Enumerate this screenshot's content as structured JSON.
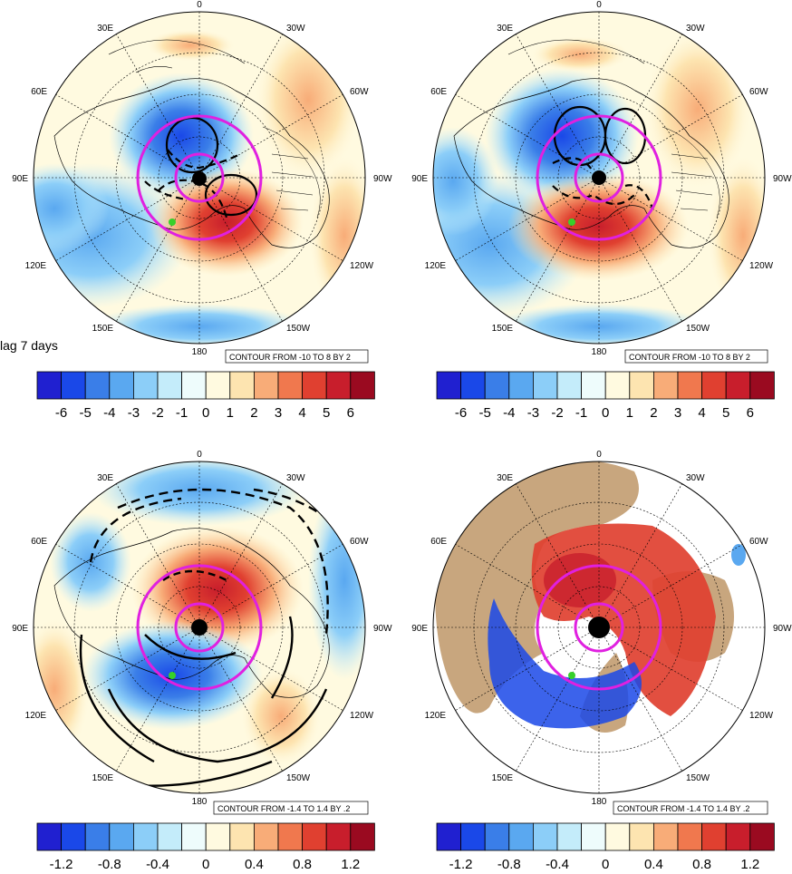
{
  "figure": {
    "lag_label": "lag 7 days"
  },
  "longitude_labels": {
    "top": "0",
    "n30e": "30E",
    "n30w": "30W",
    "e60": "60E",
    "w60": "60W",
    "e90": "90E",
    "w90": "90W",
    "e120": "120E",
    "w120": "120W",
    "e150": "150E",
    "w150": "150W",
    "bottom": "180"
  },
  "panels": [
    {
      "id": "top-left",
      "contour_info": "CONTOUR FROM -10 TO 8 BY 2",
      "land_fill": false
    },
    {
      "id": "top-right",
      "contour_info": "CONTOUR FROM -10 TO 8 BY 2",
      "land_fill": false
    },
    {
      "id": "bottom-left",
      "contour_info": "CONTOUR FROM -1.4 TO 1.4 BY .2",
      "land_fill": false
    },
    {
      "id": "bottom-right",
      "contour_info": "CONTOUR FROM -1.4 TO 1.4 BY .2",
      "land_fill": true
    }
  ],
  "colorbars": {
    "colors": [
      "#2020d0",
      "#1a48e8",
      "#3a7ee8",
      "#5aa8f0",
      "#8ccef8",
      "#c4ecfa",
      "#eefcfc",
      "#fffae0",
      "#fde4b0",
      "#f8ac78",
      "#f0784e",
      "#e04030",
      "#c81e2c",
      "#9a0a20"
    ],
    "top_ticks": [
      "-6",
      "-5",
      "-4",
      "-3",
      "-2",
      "-1",
      "0",
      "1",
      "2",
      "3",
      "4",
      "5",
      "6"
    ],
    "bottom_ticks": [
      "-1.2",
      "-0.8",
      "-0.4",
      "0",
      "0.4",
      "0.8",
      "1.2"
    ]
  },
  "colors": {
    "positive": "#e8452f",
    "negative": "#2a5cdc",
    "highlight_circle": "#e020e0",
    "marker": "#36d12a",
    "land": "#c8a67e"
  }
}
